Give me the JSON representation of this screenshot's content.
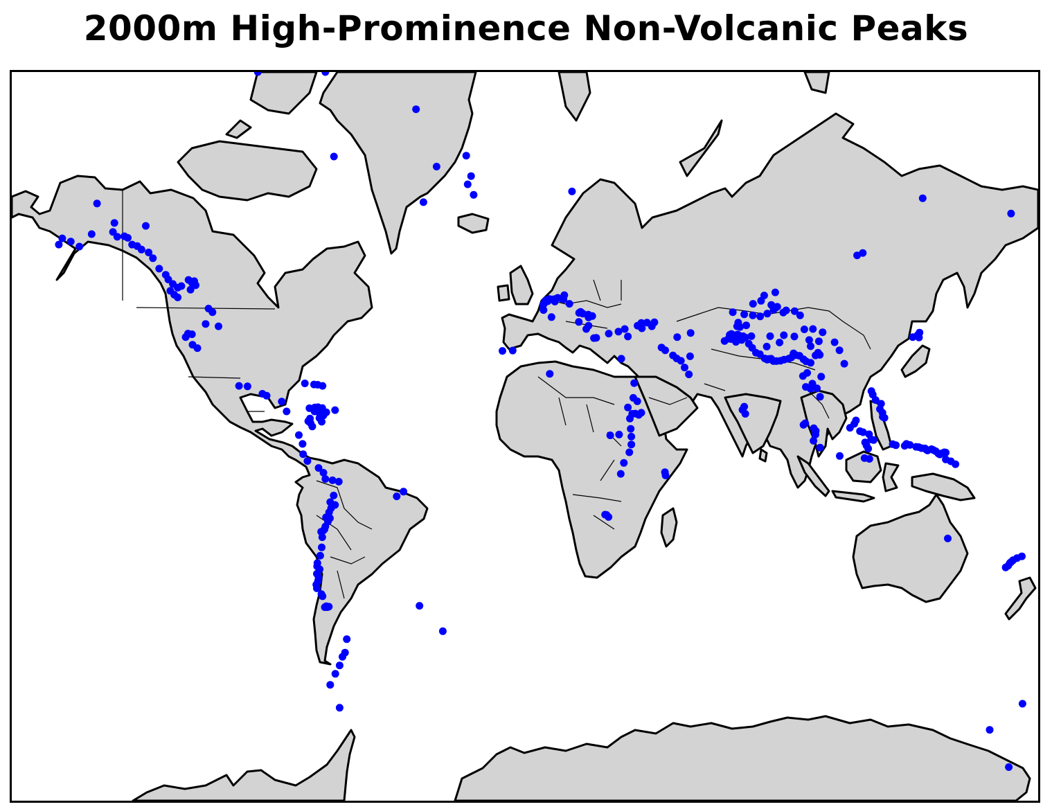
{
  "title": "2000m High-Prominence Non-Volcanic Peaks",
  "colors": {
    "land": "#d3d3d3",
    "coast": "#000000",
    "peak_marker": "#0000ff",
    "ocean": "#ffffff"
  },
  "map": {
    "projection": "mercator",
    "lon_range": [
      -180,
      180
    ],
    "lat_range": [
      -80,
      80
    ],
    "marker": "filled-circle"
  },
  "chart_data": {
    "type": "scatter",
    "title": "2000m High-Prominence Non-Volcanic Peaks",
    "x_unit": "longitude",
    "y_unit": "latitude",
    "points": [
      [
        -150.1,
        66.2
      ],
      [
        -144.5,
        61.4
      ],
      [
        -143.0,
        60.5
      ],
      [
        -140.5,
        60.6
      ],
      [
        -139.3,
        60.3
      ],
      [
        -137.8,
        59.0
      ],
      [
        -136.0,
        58.7
      ],
      [
        -134.5,
        58.0
      ],
      [
        -132.0,
        57.4
      ],
      [
        -130.5,
        56.2
      ],
      [
        -128.3,
        53.9
      ],
      [
        -126.0,
        52.5
      ],
      [
        -125.1,
        51.4
      ],
      [
        -123.5,
        50.3
      ],
      [
        -121.8,
        49.4
      ],
      [
        -120.5,
        49.8
      ],
      [
        -118.0,
        51.3
      ],
      [
        -116.8,
        50.6
      ],
      [
        -116.0,
        51.0
      ],
      [
        -115.5,
        50.0
      ],
      [
        -117.3,
        48.9
      ],
      [
        -124.4,
        48.6
      ],
      [
        -121.8,
        46.9
      ],
      [
        -123.0,
        47.6
      ],
      [
        -111.0,
        43.9
      ],
      [
        -109.6,
        42.9
      ],
      [
        -112.0,
        39.5
      ],
      [
        -107.5,
        38.8
      ],
      [
        -116.8,
        36.4
      ],
      [
        -118.2,
        36.6
      ],
      [
        -119.0,
        35.5
      ],
      [
        -116.6,
        33.1
      ],
      [
        -114.9,
        32.0
      ],
      [
        -162.3,
        60.2
      ],
      [
        -159.3,
        59.6
      ],
      [
        -156.3,
        58.6
      ],
      [
        -163.5,
        59.0
      ],
      [
        -152.0,
        61.0
      ],
      [
        -144.0,
        63.0
      ],
      [
        -133.0,
        62.5
      ],
      [
        -100.3,
        19.0
      ],
      [
        -97.3,
        18.8
      ],
      [
        -92.1,
        16.1
      ],
      [
        -90.6,
        15.4
      ],
      [
        -85.3,
        13.2
      ],
      [
        -83.6,
        9.5
      ],
      [
        -77.2,
        19.9
      ],
      [
        -74.0,
        19.5
      ],
      [
        -72.7,
        19.4
      ],
      [
        -71.0,
        19.0
      ],
      [
        -73.7,
        11.0
      ],
      [
        -72.6,
        11.1
      ],
      [
        -71.1,
        10.8
      ],
      [
        -75.6,
        10.7
      ],
      [
        -73.8,
        9.5
      ],
      [
        -71.9,
        8.5
      ],
      [
        -69.7,
        9.2
      ],
      [
        -66.6,
        10.0
      ],
      [
        -70.7,
        8.0
      ],
      [
        -72.1,
        7.0
      ],
      [
        -75.4,
        6.8
      ],
      [
        -76.0,
        5.8
      ],
      [
        -75.2,
        5.1
      ],
      [
        -74.6,
        3.8
      ],
      [
        -71.3,
        5.6
      ],
      [
        -79.3,
        0.5
      ],
      [
        -78.0,
        -2.9
      ],
      [
        -77.8,
        -6.8
      ],
      [
        -76.3,
        -9.4
      ],
      [
        -72.4,
        -12.0
      ],
      [
        -70.7,
        -13.8
      ],
      [
        -70.0,
        -16.1
      ],
      [
        -67.5,
        -16.6
      ],
      [
        -65.3,
        -17.1
      ],
      [
        -67.1,
        -22.1
      ],
      [
        -68.3,
        -24.4
      ],
      [
        -66.6,
        -25.4
      ],
      [
        -68.0,
        -26.5
      ],
      [
        -68.7,
        -27.9
      ],
      [
        -69.0,
        -29.3
      ],
      [
        -68.4,
        -29.9
      ],
      [
        -69.8,
        -29.6
      ],
      [
        -69.1,
        -31.0
      ],
      [
        -70.0,
        -32.6
      ],
      [
        -70.3,
        -33.5
      ],
      [
        -70.7,
        -33.9
      ],
      [
        -71.5,
        -34.3
      ],
      [
        -71.1,
        -36.0
      ],
      [
        -71.3,
        -39.1
      ],
      [
        -71.8,
        -41.5
      ],
      [
        -72.8,
        -43.6
      ],
      [
        -72.9,
        -44.5
      ],
      [
        -72.0,
        -45.3
      ],
      [
        -73.0,
        -46.5
      ],
      [
        -72.4,
        -47.5
      ],
      [
        -72.6,
        -48.4
      ],
      [
        -73.2,
        -49.3
      ],
      [
        -73.0,
        -50.2
      ],
      [
        -71.4,
        -51.6
      ],
      [
        -71.0,
        -52.1
      ],
      [
        -69.7,
        -54.4
      ],
      [
        -70.2,
        -54.6
      ],
      [
        -69.3,
        -54.6
      ],
      [
        -68.8,
        -54.5
      ],
      [
        -45.0,
        -22.4
      ],
      [
        -42.6,
        -20.7
      ],
      [
        -37.0,
        -54.3
      ],
      [
        -28.8,
        -59.6
      ],
      [
        -62.5,
        -61.1
      ],
      [
        -63.1,
        -63.5
      ],
      [
        -65.0,
        -65.6
      ],
      [
        -64.0,
        -64.2
      ],
      [
        -66.5,
        -66.9
      ],
      [
        -68.3,
        -68.5
      ],
      [
        -65.0,
        -71.5
      ],
      [
        -38.2,
        77.2
      ],
      [
        -31.0,
        71.3
      ],
      [
        -20.6,
        72.6
      ],
      [
        -20.1,
        69.0
      ],
      [
        -18.0,
        67.5
      ],
      [
        -18.9,
        70.1
      ],
      [
        -35.6,
        66.4
      ],
      [
        -67.0,
        72.5
      ],
      [
        -70.0,
        81.0
      ],
      [
        -93.7,
        81.6
      ],
      [
        16.5,
        68.0
      ],
      [
        7.0,
        45.8
      ],
      [
        8.0,
        45.9
      ],
      [
        7.5,
        46.2
      ],
      [
        7.8,
        46.0
      ],
      [
        8.5,
        46.5
      ],
      [
        9.6,
        46.4
      ],
      [
        10.6,
        46.5
      ],
      [
        11.5,
        46.8
      ],
      [
        13.8,
        47.5
      ],
      [
        6.8,
        45.4
      ],
      [
        6.4,
        44.9
      ],
      [
        10.5,
        45.8
      ],
      [
        13.5,
        46.4
      ],
      [
        12.9,
        46.6
      ],
      [
        6.5,
        43.5
      ],
      [
        9.3,
        41.5
      ],
      [
        15.6,
        45.2
      ],
      [
        19.5,
        43.0
      ],
      [
        20.3,
        42.5
      ],
      [
        22.2,
        42.2
      ],
      [
        23.6,
        41.8
      ],
      [
        22.3,
        41.4
      ],
      [
        19.0,
        42.7
      ],
      [
        18.9,
        40.1
      ],
      [
        22.3,
        39.0
      ],
      [
        21.5,
        38.0
      ],
      [
        24.2,
        35.2
      ],
      [
        25.0,
        35.3
      ],
      [
        29.4,
        36.6
      ],
      [
        32.8,
        37.2
      ],
      [
        35.0,
        38.0
      ],
      [
        39.5,
        39.0
      ],
      [
        41.0,
        38.2
      ],
      [
        40.8,
        39.8
      ],
      [
        42.8,
        39.9
      ],
      [
        44.5,
        38.8
      ],
      [
        45.4,
        40.0
      ],
      [
        36.1,
        35.7
      ],
      [
        33.8,
        28.5
      ],
      [
        -4.3,
        31.2
      ],
      [
        -7.9,
        31.1
      ],
      [
        8.7,
        23.3
      ],
      [
        38.3,
        20.0
      ],
      [
        38.0,
        14.6
      ],
      [
        39.4,
        13.3
      ],
      [
        36.1,
        11.0
      ],
      [
        40.8,
        9.0
      ],
      [
        38.7,
        8.7
      ],
      [
        39.9,
        8.2
      ],
      [
        37.6,
        8.6
      ],
      [
        36.8,
        6.8
      ],
      [
        37.1,
        2.9
      ],
      [
        29.9,
        0.4
      ],
      [
        37.3,
        -0.1
      ],
      [
        33.0,
        0.7
      ],
      [
        37.3,
        -3.1
      ],
      [
        36.6,
        -6.1
      ],
      [
        34.7,
        -10.1
      ],
      [
        33.6,
        -14.2
      ],
      [
        49.1,
        -13.6
      ],
      [
        49.3,
        -14.8
      ],
      [
        28.6,
        -28.8
      ],
      [
        29.3,
        -29.5
      ],
      [
        28.1,
        -28.7
      ],
      [
        47.9,
        32.2
      ],
      [
        49.2,
        31.3
      ],
      [
        51.9,
        29.6
      ],
      [
        53.2,
        28.6
      ],
      [
        54.7,
        27.8
      ],
      [
        57.9,
        29.3
      ],
      [
        56.0,
        25.5
      ],
      [
        57.5,
        23.1
      ],
      [
        53.4,
        35.5
      ],
      [
        58.1,
        36.8
      ],
      [
        72.9,
        42.9
      ],
      [
        76.9,
        42.3
      ],
      [
        79.9,
        42.0
      ],
      [
        80.0,
        45.2
      ],
      [
        82.8,
        46.0
      ],
      [
        83.9,
        47.4
      ],
      [
        87.8,
        48.2
      ],
      [
        86.4,
        44.9
      ],
      [
        87.9,
        44.1
      ],
      [
        88.5,
        44.4
      ],
      [
        91.6,
        43.4
      ],
      [
        94.6,
        43.2
      ],
      [
        96.5,
        42.0
      ],
      [
        90.6,
        42.8
      ],
      [
        87.2,
        43.6
      ],
      [
        85.0,
        42.5
      ],
      [
        82.5,
        41.7
      ],
      [
        74.8,
        39.9
      ],
      [
        77.6,
        39.1
      ],
      [
        75.4,
        38.6
      ],
      [
        74.4,
        38.8
      ],
      [
        72.4,
        36.5
      ],
      [
        71.8,
        36.2
      ],
      [
        73.7,
        36.1
      ],
      [
        74.6,
        36.3
      ],
      [
        75.3,
        35.9
      ],
      [
        76.5,
        35.8
      ],
      [
        77.3,
        35.4
      ],
      [
        76.0,
        34.6
      ],
      [
        71.4,
        35.0
      ],
      [
        70.0,
        34.3
      ],
      [
        72.3,
        34.9
      ],
      [
        73.0,
        35.5
      ],
      [
        74.0,
        34.0
      ],
      [
        79.4,
        35.8
      ],
      [
        78.5,
        33.4
      ],
      [
        79.7,
        32.1
      ],
      [
        81.0,
        30.5
      ],
      [
        82.4,
        30.0
      ],
      [
        84.1,
        28.6
      ],
      [
        85.0,
        28.2
      ],
      [
        85.5,
        28.4
      ],
      [
        86.3,
        28.5
      ],
      [
        86.9,
        27.9
      ],
      [
        87.2,
        27.7
      ],
      [
        88.2,
        27.7
      ],
      [
        89.6,
        27.8
      ],
      [
        90.9,
        28.2
      ],
      [
        92.5,
        28.5
      ],
      [
        93.4,
        28.9
      ],
      [
        95.0,
        29.7
      ],
      [
        94.2,
        30.3
      ],
      [
        96.3,
        29.5
      ],
      [
        97.7,
        28.3
      ],
      [
        98.6,
        27.6
      ],
      [
        100.2,
        27.1
      ],
      [
        101.9,
        29.6
      ],
      [
        102.8,
        30.5
      ],
      [
        100.2,
        32.6
      ],
      [
        99.7,
        34.6
      ],
      [
        103.1,
        34.2
      ],
      [
        104.4,
        37.0
      ],
      [
        94.5,
        35.7
      ],
      [
        89.3,
        33.8
      ],
      [
        86.0,
        35.8
      ],
      [
        84.8,
        32.5
      ],
      [
        90.8,
        36.1
      ],
      [
        98.0,
        37.9
      ],
      [
        101.0,
        38.0
      ],
      [
        108.6,
        33.9
      ],
      [
        103.4,
        29.8
      ],
      [
        110.3,
        31.3
      ],
      [
        112.0,
        26.8
      ],
      [
        99.0,
        23.6
      ],
      [
        97.5,
        22.5
      ],
      [
        100.8,
        19.8
      ],
      [
        98.5,
        18.6
      ],
      [
        103.9,
        22.3
      ],
      [
        102.4,
        18.1
      ],
      [
        100.2,
        17.9
      ],
      [
        103.5,
        15.0
      ],
      [
        76.9,
        11.3
      ],
      [
        76.3,
        10.1
      ],
      [
        77.3,
        8.6
      ],
      [
        98.3,
        5.0
      ],
      [
        97.7,
        4.4
      ],
      [
        101.3,
        3.1
      ],
      [
        102.0,
        2.1
      ],
      [
        101.9,
        0.7
      ],
      [
        101.2,
        -1.7
      ],
      [
        103.5,
        -4.3
      ],
      [
        110.4,
        -7.5
      ],
      [
        116.1,
        6.1
      ],
      [
        115.5,
        4.8
      ],
      [
        114.0,
        3.3
      ],
      [
        117.5,
        2.0
      ],
      [
        118.6,
        1.6
      ],
      [
        121.5,
        17.1
      ],
      [
        122.0,
        15.8
      ],
      [
        123.0,
        13.8
      ],
      [
        124.9,
        12.4
      ],
      [
        124.5,
        10.4
      ],
      [
        125.4,
        9.0
      ],
      [
        126.1,
        7.1
      ],
      [
        125.5,
        7.5
      ],
      [
        120.7,
        0.8
      ],
      [
        121.4,
        -1.2
      ],
      [
        122.3,
        -1.4
      ],
      [
        119.3,
        -2.3
      ],
      [
        119.8,
        -3.5
      ],
      [
        120.4,
        -4.7
      ],
      [
        119.1,
        -8.3
      ],
      [
        120.8,
        -8.6
      ],
      [
        129.0,
        -3.0
      ],
      [
        130.1,
        -3.4
      ],
      [
        133.2,
        -3.6
      ],
      [
        133.8,
        -2.9
      ],
      [
        135.0,
        -3.3
      ],
      [
        137.2,
        -4.0
      ],
      [
        138.1,
        -4.1
      ],
      [
        139.1,
        -4.5
      ],
      [
        140.3,
        -4.6
      ],
      [
        140.8,
        -5.1
      ],
      [
        141.2,
        -5.4
      ],
      [
        142.6,
        -4.9
      ],
      [
        143.2,
        -5.2
      ],
      [
        144.1,
        -5.7
      ],
      [
        146.4,
        -6.4
      ],
      [
        147.1,
        -6.1
      ],
      [
        147.6,
        -6.2
      ],
      [
        147.6,
        -8.8
      ],
      [
        149.4,
        -9.5
      ],
      [
        151.0,
        -10.6
      ],
      [
        145.5,
        -6.9
      ],
      [
        145.0,
        -6.6
      ],
      [
        136.0,
        35.5
      ],
      [
        137.7,
        36.1
      ],
      [
        138.4,
        36.9
      ],
      [
        138.2,
        35.4
      ],
      [
        148.3,
        -36.4
      ],
      [
        170.1,
        -43.6
      ],
      [
        169.5,
        -44.3
      ],
      [
        170.5,
        -43.3
      ],
      [
        171.2,
        -42.8
      ],
      [
        172.6,
        -42.2
      ],
      [
        174.3,
        -41.7
      ],
      [
        168.6,
        -44.8
      ],
      [
        169.7,
        -77.5
      ],
      [
        163.0,
        -74.0
      ],
      [
        174.5,
        -71.0
      ],
      [
        139.5,
        67.0
      ],
      [
        116.5,
        56.8
      ],
      [
        118.5,
        57.3
      ],
      [
        170.5,
        64.6
      ]
    ]
  }
}
